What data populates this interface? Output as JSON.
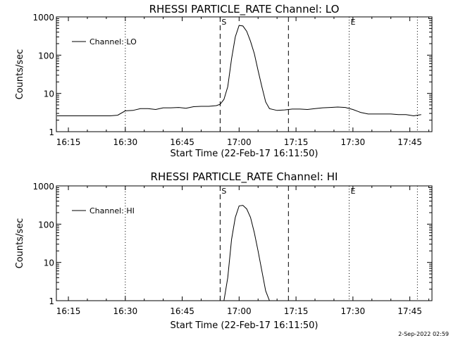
{
  "footer_date": "2-Sep-2022 02:59",
  "chart_data": [
    {
      "type": "line",
      "title": "RHESSI PARTICLE_RATE Channel: LO",
      "xlabel": "Start Time (22-Feb-17 16:11:50)",
      "ylabel": "Counts/sec",
      "yscale": "log",
      "ylim": [
        1,
        1000
      ],
      "xlim": [
        "16:11:50",
        "17:50:50"
      ],
      "x_ticks": [
        "16:15",
        "16:30",
        "16:45",
        "17:00",
        "17:15",
        "17:30",
        "17:45"
      ],
      "y_ticks": [
        "1",
        "10",
        "100",
        "1000"
      ],
      "legend": "Channel: LO",
      "legend_position": "top-left",
      "markers": [
        {
          "time": "16:30",
          "style": "dotted",
          "label": ""
        },
        {
          "time": "16:55",
          "style": "dashed",
          "label": "S"
        },
        {
          "time": "17:13",
          "style": "dashed",
          "label": ""
        },
        {
          "time": "17:29",
          "style": "dotted",
          "label": "E"
        },
        {
          "time": "17:47",
          "style": "dotted",
          "label": ""
        }
      ],
      "series": [
        {
          "name": "Channel: LO",
          "points": [
            [
              "16:12",
              2.6
            ],
            [
              "16:14",
              2.6
            ],
            [
              "16:16",
              2.6
            ],
            [
              "16:18",
              2.6
            ],
            [
              "16:20",
              2.6
            ],
            [
              "16:22",
              2.6
            ],
            [
              "16:24",
              2.6
            ],
            [
              "16:26",
              2.6
            ],
            [
              "16:28",
              2.7
            ],
            [
              "16:30",
              3.5
            ],
            [
              "16:32",
              3.6
            ],
            [
              "16:34",
              4.0
            ],
            [
              "16:36",
              4.0
            ],
            [
              "16:38",
              3.8
            ],
            [
              "16:40",
              4.2
            ],
            [
              "16:42",
              4.2
            ],
            [
              "16:44",
              4.3
            ],
            [
              "16:46",
              4.1
            ],
            [
              "16:48",
              4.5
            ],
            [
              "16:50",
              4.6
            ],
            [
              "16:52",
              4.6
            ],
            [
              "16:54",
              4.8
            ],
            [
              "16:55",
              5.2
            ],
            [
              "16:56",
              7
            ],
            [
              "16:57",
              15
            ],
            [
              "16:58",
              80
            ],
            [
              "16:59",
              300
            ],
            [
              "17:00",
              600
            ],
            [
              "17:01",
              580
            ],
            [
              "17:02",
              420
            ],
            [
              "17:03",
              230
            ],
            [
              "17:04",
              110
            ],
            [
              "17:05",
              40
            ],
            [
              "17:06",
              15
            ],
            [
              "17:07",
              6
            ],
            [
              "17:08",
              4.0
            ],
            [
              "17:10",
              3.6
            ],
            [
              "17:12",
              3.7
            ],
            [
              "17:14",
              3.9
            ],
            [
              "17:16",
              3.9
            ],
            [
              "17:18",
              3.8
            ],
            [
              "17:20",
              4.0
            ],
            [
              "17:22",
              4.2
            ],
            [
              "17:24",
              4.3
            ],
            [
              "17:26",
              4.4
            ],
            [
              "17:28",
              4.3
            ],
            [
              "17:30",
              3.8
            ],
            [
              "17:32",
              3.2
            ],
            [
              "17:34",
              2.9
            ],
            [
              "17:36",
              2.9
            ],
            [
              "17:38",
              2.9
            ],
            [
              "17:40",
              2.9
            ],
            [
              "17:42",
              2.8
            ],
            [
              "17:44",
              2.8
            ],
            [
              "17:46",
              2.6
            ],
            [
              "17:48",
              2.8
            ]
          ]
        }
      ]
    },
    {
      "type": "line",
      "title": "RHESSI PARTICLE_RATE Channel: HI",
      "xlabel": "Start Time (22-Feb-17 16:11:50)",
      "ylabel": "Counts/sec",
      "yscale": "log",
      "ylim": [
        1,
        1000
      ],
      "xlim": [
        "16:11:50",
        "17:50:50"
      ],
      "x_ticks": [
        "16:15",
        "16:30",
        "16:45",
        "17:00",
        "17:15",
        "17:30",
        "17:45"
      ],
      "y_ticks": [
        "1",
        "10",
        "100",
        "1000"
      ],
      "legend": "Channel: HI",
      "legend_position": "top-left",
      "markers": [
        {
          "time": "16:30",
          "style": "dotted",
          "label": ""
        },
        {
          "time": "16:55",
          "style": "dashed",
          "label": "S"
        },
        {
          "time": "17:13",
          "style": "dashed",
          "label": ""
        },
        {
          "time": "17:29",
          "style": "dotted",
          "label": "E"
        },
        {
          "time": "17:47",
          "style": "dotted",
          "label": ""
        }
      ],
      "series": [
        {
          "name": "Channel: HI",
          "points": [
            [
              "16:56",
              1.0
            ],
            [
              "16:57",
              4.0
            ],
            [
              "16:58",
              40
            ],
            [
              "16:59",
              150
            ],
            [
              "17:00",
              300
            ],
            [
              "17:01",
              310
            ],
            [
              "17:02",
              250
            ],
            [
              "17:03",
              150
            ],
            [
              "17:04",
              60
            ],
            [
              "17:05",
              20
            ],
            [
              "17:06",
              6
            ],
            [
              "17:07",
              1.8
            ],
            [
              "17:08",
              1.0
            ]
          ]
        }
      ]
    }
  ]
}
